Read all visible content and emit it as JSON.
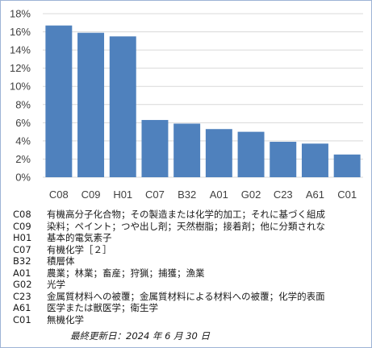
{
  "chart_data": {
    "type": "bar",
    "categories": [
      "C08",
      "C09",
      "H01",
      "C07",
      "B32",
      "A01",
      "G02",
      "C23",
      "A61",
      "C01"
    ],
    "values": [
      16.7,
      15.9,
      15.5,
      6.3,
      5.9,
      5.3,
      5.0,
      3.9,
      3.7,
      2.5
    ],
    "y_unit": "%",
    "ylim": [
      0,
      18
    ],
    "yticks": [
      "0%",
      "2%",
      "4%",
      "6%",
      "8%",
      "10%",
      "12%",
      "14%",
      "16%",
      "18%"
    ],
    "grid": true,
    "bar_color": "#4f81bd"
  },
  "legend": [
    {
      "code": "C08",
      "desc": "有機高分子化合物；その製造または化学的加工；それに基づく組成"
    },
    {
      "code": "C09",
      "desc": "染料；ペイント；つや出し剤；天然樹脂；接着剤；他に分類されな"
    },
    {
      "code": "H01",
      "desc": "基本的電気素子"
    },
    {
      "code": "C07",
      "desc": "有機化学［２］"
    },
    {
      "code": "B32",
      "desc": "積層体"
    },
    {
      "code": "A01",
      "desc": "農業；林業；畜産；狩猟；捕獲；漁業"
    },
    {
      "code": "G02",
      "desc": "光学"
    },
    {
      "code": "C23",
      "desc": "金属質材料への被覆；金属質材料による材料への被覆；化学的表面"
    },
    {
      "code": "A61",
      "desc": "医学または獣医学；衛生学"
    },
    {
      "code": "C01",
      "desc": "無機化学"
    }
  ],
  "footer": "最終更新日：2024 年 6 月 30 日"
}
